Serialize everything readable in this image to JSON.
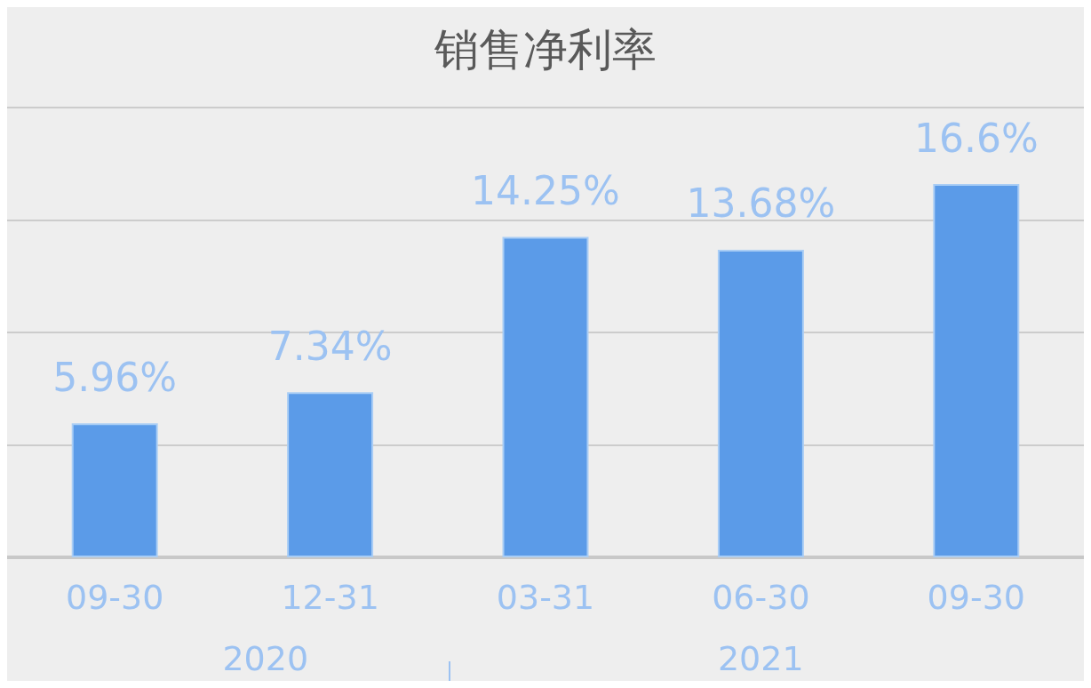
{
  "chart_data": {
    "type": "bar",
    "title": "销售净利率",
    "categories": [
      "09-30",
      "12-31",
      "03-31",
      "06-30",
      "09-30"
    ],
    "values": [
      5.96,
      7.34,
      14.25,
      13.68,
      16.6
    ],
    "value_labels": [
      "5.96%",
      "7.34%",
      "14.25%",
      "13.68%",
      "16.6%"
    ],
    "color": "#5b9be8",
    "ylim": [
      0,
      20
    ],
    "yticks": [
      {
        "value": 0,
        "label": null
      },
      {
        "value": 5,
        "label": null
      },
      {
        "value": 10,
        "label": null
      },
      {
        "value": 15,
        "label": null
      },
      {
        "value": 20,
        "label": null
      }
    ],
    "grid": "y",
    "tick_labels": "x",
    "annotations": [
      "2020",
      "2021"
    ]
  }
}
